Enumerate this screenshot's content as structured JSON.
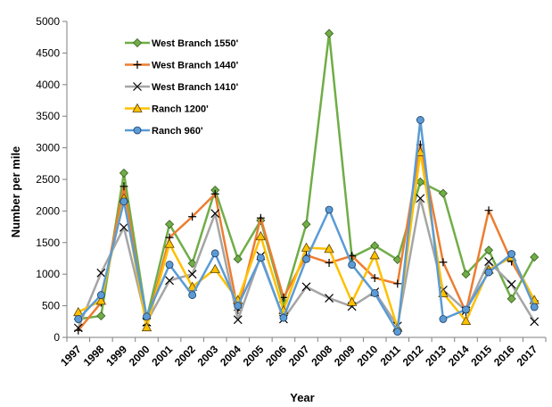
{
  "chart_data": {
    "type": "line",
    "title": "",
    "xlabel": "Year",
    "ylabel": "Number per mile",
    "ylim": [
      0,
      5000
    ],
    "yticks": [
      0,
      500,
      1000,
      1500,
      2000,
      2500,
      3000,
      3500,
      4000,
      4500,
      5000
    ],
    "grid": false,
    "legend": "top-left",
    "categories": [
      "1997",
      "1998",
      "1999",
      "2000",
      "2001",
      "2002",
      "2003",
      "2004",
      "2005",
      "2006",
      "2007",
      "2008",
      "2009",
      "2010",
      "2011",
      "2012",
      "2013",
      "2014",
      "2015",
      "2016",
      "2017"
    ],
    "series": [
      {
        "name": "West Branch 1550'",
        "color": "#70AD47",
        "marker": "diamond",
        "values": [
          290,
          340,
          2600,
          300,
          1790,
          1170,
          2330,
          1240,
          1850,
          560,
          1790,
          4810,
          1270,
          1450,
          1230,
          2460,
          2280,
          1000,
          1380,
          610,
          1270
        ]
      },
      {
        "name": "West Branch 1440'",
        "color": "#ED7D31",
        "marker": "plus",
        "values": [
          110,
          550,
          2390,
          190,
          1580,
          1910,
          2270,
          430,
          1890,
          630,
          1300,
          1180,
          1290,
          940,
          850,
          3050,
          1190,
          400,
          2010,
          1200,
          580
        ]
      },
      {
        "name": "West Branch 1410'",
        "color": "#A5A5A5",
        "marker": "x",
        "values": [
          150,
          1020,
          1740,
          240,
          900,
          1000,
          1960,
          280,
          1290,
          290,
          800,
          620,
          490,
          720,
          180,
          2200,
          750,
          420,
          1200,
          840,
          250
        ]
      },
      {
        "name": "Ranch 1200'",
        "color": "#FFC000",
        "marker": "triangle",
        "values": [
          400,
          580,
          2200,
          160,
          1480,
          800,
          1080,
          590,
          1600,
          430,
          1420,
          1400,
          560,
          1300,
          150,
          2930,
          700,
          260,
          1070,
          1270,
          590
        ]
      },
      {
        "name": "Ranch 960'",
        "color": "#5B9BD5",
        "marker": "circle",
        "values": [
          290,
          670,
          2150,
          330,
          1150,
          670,
          1330,
          500,
          1260,
          310,
          1240,
          2020,
          1150,
          700,
          90,
          3440,
          290,
          440,
          1030,
          1320,
          480
        ]
      }
    ]
  }
}
